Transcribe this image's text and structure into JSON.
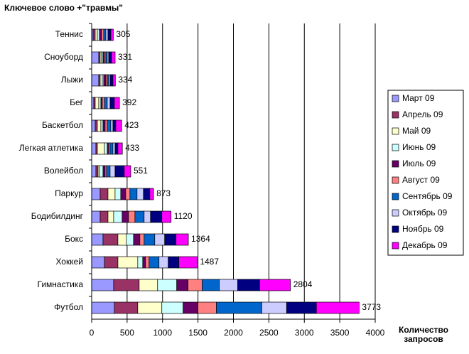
{
  "chart_data": {
    "type": "stacked-bar-horizontal",
    "title": "Ключевое слово +\"травмы\"",
    "x_label": "Количество запросов",
    "categories": [
      "Теннис",
      "Сноуборд",
      "Лыжи",
      "Бег",
      "Баскетбол",
      "Легкая атлетика",
      "Волейбол",
      "Паркур",
      "Бодибилдинг",
      "Бокс",
      "Хоккей",
      "Гимнастика",
      "Футбол"
    ],
    "series": [
      {
        "name": "Март 09",
        "color": "#9999ff",
        "values": [
          20,
          100,
          100,
          30,
          50,
          60,
          60,
          120,
          120,
          160,
          180,
          310,
          320
        ]
      },
      {
        "name": "Апрель 09",
        "color": "#993366",
        "values": [
          30,
          20,
          20,
          20,
          30,
          20,
          30,
          110,
          110,
          210,
          190,
          360,
          330
        ]
      },
      {
        "name": "Май 09",
        "color": "#ffffcc",
        "values": [
          30,
          20,
          30,
          50,
          50,
          100,
          20,
          100,
          80,
          120,
          280,
          260,
          340
        ]
      },
      {
        "name": "Июнь 09",
        "color": "#ccffff",
        "values": [
          30,
          20,
          20,
          30,
          30,
          40,
          50,
          80,
          120,
          100,
          70,
          270,
          300
        ]
      },
      {
        "name": "Июль 09",
        "color": "#660066",
        "values": [
          30,
          20,
          30,
          20,
          30,
          20,
          30,
          70,
          90,
          90,
          40,
          160,
          210
        ]
      },
      {
        "name": "Август 09",
        "color": "#ff8080",
        "values": [
          30,
          20,
          20,
          30,
          30,
          20,
          20,
          60,
          90,
          60,
          50,
          200,
          260
        ]
      },
      {
        "name": "Сентябрь 09",
        "color": "#0066cc",
        "values": [
          30,
          20,
          20,
          40,
          50,
          40,
          50,
          100,
          130,
          150,
          140,
          240,
          640
        ]
      },
      {
        "name": "Октябрь 09",
        "color": "#ccccff",
        "values": [
          30,
          20,
          20,
          40,
          30,
          30,
          70,
          90,
          90,
          140,
          130,
          260,
          350
        ]
      },
      {
        "name": "Ноябрь 09",
        "color": "#000080",
        "values": [
          40,
          40,
          40,
          60,
          40,
          40,
          130,
          90,
          160,
          160,
          150,
          310,
          420
        ]
      },
      {
        "name": "Декабрь 09",
        "color": "#ff00ff",
        "values": [
          35,
          51,
          34,
          72,
          83,
          63,
          91,
          53,
          130,
          174,
          257,
          434,
          603
        ]
      }
    ],
    "totals": [
      305,
      331,
      334,
      392,
      423,
      433,
      551,
      873,
      1120,
      1364,
      1487,
      2804,
      3773
    ],
    "xlim": [
      0,
      4000
    ],
    "xticks": [
      0,
      500,
      1000,
      1500,
      2000,
      2500,
      3000,
      3500,
      4000
    ],
    "grid": true
  }
}
